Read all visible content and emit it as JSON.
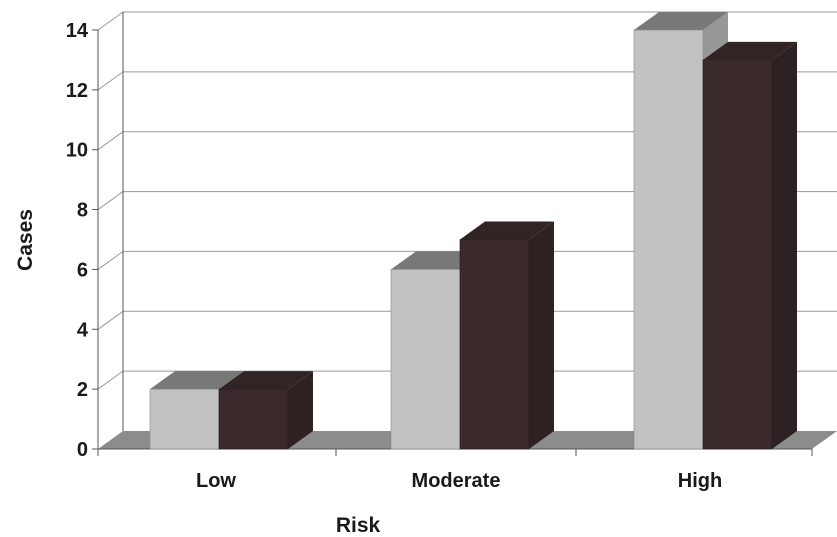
{
  "chart_data": {
    "type": "bar",
    "title": "",
    "xlabel": "Risk",
    "ylabel": "Cases",
    "categories": [
      "Low",
      "Moderate",
      "High"
    ],
    "series": [
      {
        "values": [
          2,
          6,
          14
        ],
        "color": "#c2c2c2"
      },
      {
        "values": [
          2,
          7,
          13
        ],
        "color": "#3a2a2c"
      }
    ],
    "ylim": [
      0,
      14
    ],
    "yticks": [
      "0",
      "2",
      "4",
      "6",
      "8",
      "10",
      "12",
      "14"
    ],
    "grid": true,
    "legend": "none",
    "style": "3d-column"
  }
}
